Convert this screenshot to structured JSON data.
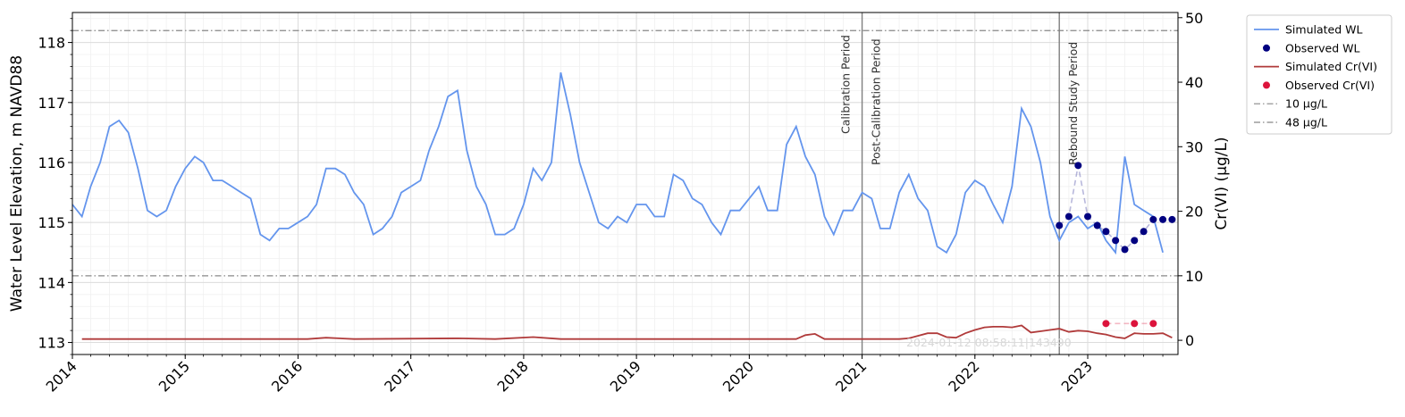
{
  "chart_data": {
    "type": "line",
    "left_axis": {
      "label": "Water Level Elevation, m NAVD88",
      "range": [
        112.8,
        118.5
      ],
      "ticks": [
        113,
        114,
        115,
        116,
        117,
        118
      ]
    },
    "right_axis": {
      "label": "Cr(VI) (µg/L)",
      "range": [
        -2.2,
        50.8
      ],
      "ticks": [
        0,
        10,
        20,
        30,
        40,
        50
      ]
    },
    "x_axis": {
      "range": [
        "2014-01-01",
        "2023-10-20"
      ],
      "ticks": [
        "2014",
        "2015",
        "2016",
        "2017",
        "2018",
        "2019",
        "2020",
        "2021",
        "2022",
        "2023"
      ]
    },
    "grid": true,
    "legend_placement": "outside-top-right",
    "colors": {
      "simulated_wl": "#6495ED",
      "observed_wl": "#000080",
      "simulated_cr": "#B03A3A",
      "observed_cr": "#DC143C",
      "threshold": "#888888",
      "period_line": "#808080"
    },
    "legend": [
      "Simulated WL",
      "Observed WL",
      "Simulated Cr(VI)",
      "Observed Cr(VI)",
      "10 µg/L",
      "48 µg/L"
    ],
    "thresholds": [
      {
        "name": "10 µg/L",
        "value": 10
      },
      {
        "name": "48 µg/L",
        "value": 48
      }
    ],
    "periods": [
      {
        "label": "Calibration Period",
        "date": "2021-01-01",
        "side": "left"
      },
      {
        "label": "Post-Calibration Period",
        "date": "2021-01-01",
        "side": "right"
      },
      {
        "label": "Rebound Study Period",
        "date": "2022-10-01",
        "side": "right"
      }
    ],
    "simulated_wl": {
      "name": "Simulated WL",
      "x": [
        "2014-01-01",
        "2014-02-01",
        "2014-03-01",
        "2014-04-01",
        "2014-05-01",
        "2014-06-01",
        "2014-07-01",
        "2014-08-01",
        "2014-09-01",
        "2014-10-01",
        "2014-11-01",
        "2014-12-01",
        "2015-01-01",
        "2015-02-01",
        "2015-03-01",
        "2015-04-01",
        "2015-05-01",
        "2015-06-01",
        "2015-07-01",
        "2015-08-01",
        "2015-09-01",
        "2015-10-01",
        "2015-11-01",
        "2015-12-01",
        "2016-01-01",
        "2016-02-01",
        "2016-03-01",
        "2016-04-01",
        "2016-05-01",
        "2016-06-01",
        "2016-07-01",
        "2016-08-01",
        "2016-09-01",
        "2016-10-01",
        "2016-11-01",
        "2016-12-01",
        "2017-01-01",
        "2017-02-01",
        "2017-03-01",
        "2017-04-01",
        "2017-05-01",
        "2017-06-01",
        "2017-07-01",
        "2017-08-01",
        "2017-09-01",
        "2017-10-01",
        "2017-11-01",
        "2017-12-01",
        "2018-01-01",
        "2018-02-01",
        "2018-03-01",
        "2018-04-01",
        "2018-05-01",
        "2018-06-01",
        "2018-07-01",
        "2018-08-01",
        "2018-09-01",
        "2018-10-01",
        "2018-11-01",
        "2018-12-01",
        "2019-01-01",
        "2019-02-01",
        "2019-03-01",
        "2019-04-01",
        "2019-05-01",
        "2019-06-01",
        "2019-07-01",
        "2019-08-01",
        "2019-09-01",
        "2019-10-01",
        "2019-11-01",
        "2019-12-01",
        "2020-01-01",
        "2020-02-01",
        "2020-03-01",
        "2020-04-01",
        "2020-05-01",
        "2020-06-01",
        "2020-07-01",
        "2020-08-01",
        "2020-09-01",
        "2020-10-01",
        "2020-11-01",
        "2020-12-01",
        "2021-01-01",
        "2021-02-01",
        "2021-03-01",
        "2021-04-01",
        "2021-05-01",
        "2021-06-01",
        "2021-07-01",
        "2021-08-01",
        "2021-09-01",
        "2021-10-01",
        "2021-11-01",
        "2021-12-01",
        "2022-01-01",
        "2022-02-01",
        "2022-03-01",
        "2022-04-01",
        "2022-05-01",
        "2022-06-01",
        "2022-07-01",
        "2022-08-01",
        "2022-09-01",
        "2022-10-01",
        "2022-11-01",
        "2022-12-01",
        "2023-01-01",
        "2023-02-01",
        "2023-03-01",
        "2023-04-01",
        "2023-05-01",
        "2023-06-01",
        "2023-07-01",
        "2023-08-01",
        "2023-09-01"
      ],
      "values": [
        115.3,
        115.1,
        115.6,
        116.0,
        116.6,
        116.7,
        116.5,
        115.9,
        115.2,
        115.1,
        115.2,
        115.6,
        115.9,
        116.1,
        116.0,
        115.7,
        115.7,
        115.6,
        115.5,
        115.4,
        114.8,
        114.7,
        114.9,
        114.9,
        115.0,
        115.1,
        115.3,
        115.9,
        115.9,
        115.8,
        115.5,
        115.3,
        114.8,
        114.9,
        115.1,
        115.5,
        115.6,
        115.7,
        116.2,
        116.6,
        117.1,
        117.2,
        116.2,
        115.6,
        115.3,
        114.8,
        114.8,
        114.9,
        115.3,
        115.9,
        115.7,
        116.0,
        117.5,
        116.8,
        116.0,
        115.5,
        115.0,
        114.9,
        115.1,
        115.0,
        115.3,
        115.3,
        115.1,
        115.1,
        115.8,
        115.7,
        115.4,
        115.3,
        115.0,
        114.8,
        115.2,
        115.2,
        115.4,
        115.6,
        115.2,
        115.2,
        116.3,
        116.6,
        116.1,
        115.8,
        115.1,
        114.8,
        115.2,
        115.2,
        115.5,
        115.4,
        114.9,
        114.9,
        115.5,
        115.8,
        115.4,
        115.2,
        114.6,
        114.5,
        114.8,
        115.5,
        115.7,
        115.6,
        115.3,
        115.0,
        115.6,
        116.9,
        116.6,
        116.0,
        115.1,
        114.7,
        115.0,
        115.1,
        114.9,
        115.0,
        114.7,
        114.5,
        116.1,
        115.3,
        115.2,
        115.1,
        114.5
      ]
    },
    "observed_wl": {
      "name": "Observed WL",
      "x": [
        "2022-10-01",
        "2022-11-01",
        "2022-12-01",
        "2023-01-01",
        "2023-02-01",
        "2023-03-01",
        "2023-04-01",
        "2023-05-01",
        "2023-06-01",
        "2023-07-01",
        "2023-08-01",
        "2023-09-01",
        "2023-10-01"
      ],
      "values": [
        114.95,
        115.1,
        115.95,
        115.1,
        114.95,
        114.85,
        114.7,
        114.55,
        114.7,
        114.85,
        115.05,
        115.05,
        115.05
      ]
    },
    "simulated_cr": {
      "name": "Simulated Cr(VI)",
      "x": [
        "2014-02-01",
        "2016-02-01",
        "2016-04-01",
        "2016-07-01",
        "2017-06-01",
        "2017-10-01",
        "2018-02-01",
        "2018-05-01",
        "2018-07-01",
        "2020-06-01",
        "2020-07-01",
        "2020-08-01",
        "2020-09-01",
        "2021-05-01",
        "2021-06-01",
        "2021-08-01",
        "2021-09-01",
        "2021-10-01",
        "2021-11-01",
        "2021-12-01",
        "2022-01-01",
        "2022-02-01",
        "2022-03-01",
        "2022-04-01",
        "2022-05-01",
        "2022-06-01",
        "2022-07-01",
        "2022-08-01",
        "2022-09-01",
        "2022-10-01",
        "2022-11-01",
        "2022-12-01",
        "2023-01-01",
        "2023-02-01",
        "2023-03-01",
        "2023-04-01",
        "2023-05-01",
        "2023-06-01",
        "2023-07-01",
        "2023-08-01",
        "2023-09-01",
        "2023-10-01"
      ],
      "values": [
        0.2,
        0.2,
        0.4,
        0.2,
        0.3,
        0.2,
        0.5,
        0.2,
        0.2,
        0.2,
        0.8,
        1.0,
        0.2,
        0.2,
        0.3,
        1.1,
        1.1,
        0.5,
        0.4,
        1.1,
        1.6,
        2.0,
        2.1,
        2.1,
        2.0,
        2.3,
        1.2,
        1.4,
        1.6,
        1.8,
        1.3,
        1.5,
        1.4,
        1.1,
        0.9,
        0.5,
        0.3,
        1.1,
        1.0,
        1.0,
        1.1,
        0.4
      ]
    },
    "observed_cr": {
      "name": "Observed Cr(VI)",
      "x": [
        "2023-03-01",
        "2023-06-01",
        "2023-08-01"
      ],
      "values": [
        2.6,
        2.6,
        2.6
      ]
    },
    "timestamp": "2024-01-12 08:58:11|143490"
  }
}
